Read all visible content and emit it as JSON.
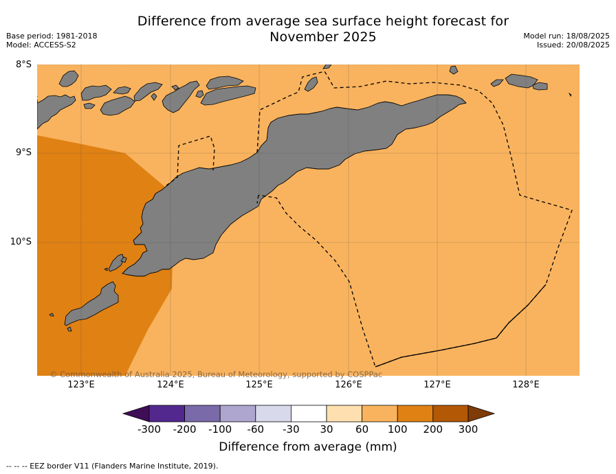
{
  "title": {
    "line1": "Difference from average sea surface height forecast for",
    "line2": "November 2025"
  },
  "meta_left": {
    "base_period": "Base period: 1981-2018",
    "model": "Model: ACCESS-S2"
  },
  "meta_right": {
    "model_run": "Model run: 18/08/2025",
    "issued": "Issued: 20/08/2025"
  },
  "map": {
    "latitude_labels": [
      "8°S",
      "9°S",
      "10°S"
    ],
    "longitude_labels": [
      "123°E",
      "124°E",
      "125°E",
      "126°E",
      "127°E",
      "128°E"
    ],
    "copyright": "© Commonwealth of Australia 2025, Bureau of Meteorology, supported by COSPPac",
    "colors": {
      "ocean_60_100": "#f9b35e",
      "ocean_100_200": "#e08114",
      "land": "#808080",
      "eez_border": "#000000"
    }
  },
  "colorbar": {
    "label": "Difference from average (mm)",
    "ticks": [
      "-300",
      "-200",
      "-100",
      "-60",
      "-30",
      "30",
      "60",
      "100",
      "200",
      "300"
    ],
    "colors": [
      "#3f0e57",
      "#52288e",
      "#7b6aaa",
      "#aea6cf",
      "#d8d9eb",
      "#ffffff",
      "#fee0b0",
      "#f9b35e",
      "#e08114",
      "#b35805",
      "#7f3b08"
    ]
  },
  "footer": "--  --  -- EEZ border V11 (Flanders Marine Institute, 2019)."
}
